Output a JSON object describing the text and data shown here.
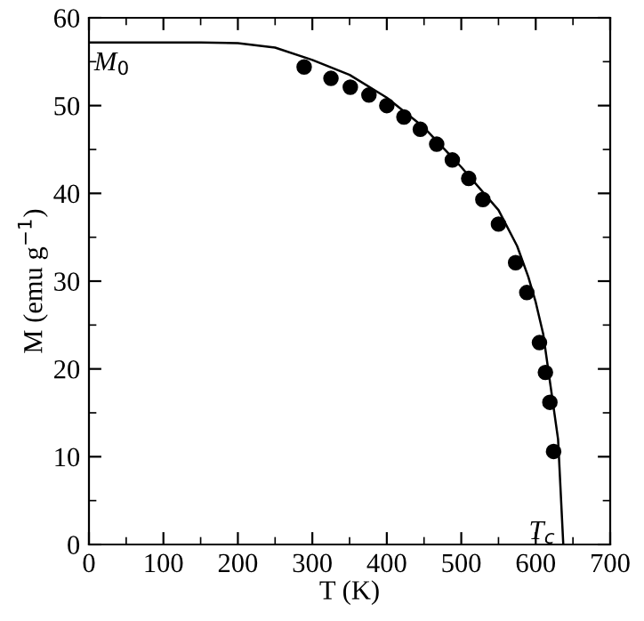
{
  "chart_data": {
    "type": "scatter",
    "xlabel": "T (K)",
    "ylabel": "M (emu g$^{−1}$)",
    "xlim": [
      0,
      700
    ],
    "xticks": [
      0,
      100,
      200,
      300,
      400,
      500,
      600,
      700
    ],
    "ylim": [
      0,
      60
    ],
    "yticks": [
      0,
      10,
      20,
      30,
      40,
      50,
      60
    ],
    "grid": false,
    "legend": false,
    "marker": "circle",
    "series": [
      {
        "color": "#000000",
        "x": [
          289,
          325,
          351,
          376,
          400,
          423,
          445,
          467,
          488,
          510,
          529,
          550,
          573,
          588,
          605,
          613,
          619,
          624
        ],
        "values": [
          54.4,
          53.1,
          52.1,
          51.2,
          50.0,
          48.7,
          47.3,
          45.6,
          43.8,
          41.7,
          39.3,
          36.5,
          32.1,
          28.7,
          23.0,
          19.6,
          16.2,
          10.6
        ]
      },
      {
        "type": "line",
        "color": "#000000",
        "marker": "none",
        "x": [
          0,
          150,
          200,
          250,
          300,
          350,
          400,
          450,
          500,
          550,
          575,
          590,
          600,
          610,
          620,
          630,
          637
        ],
        "values": [
          57.2,
          57.2,
          57.1,
          56.6,
          55.2,
          53.5,
          50.9,
          47.5,
          43.0,
          38.1,
          34.0,
          30.5,
          27.6,
          24.0,
          18.0,
          12.0,
          0
        ]
      }
    ],
    "annotations": [
      "M$_{0}$",
      "T$_{c}$"
    ]
  }
}
